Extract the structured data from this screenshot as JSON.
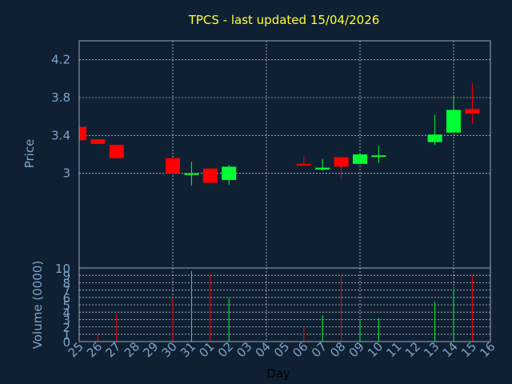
{
  "chart_data": {
    "type": "candlestick",
    "title": "TPCS - last updated 15/04/2026",
    "xlabel": "Day",
    "colors": {
      "background": "#0f2033",
      "plot_background": "#0f2033",
      "grid": "#ffffff",
      "axis_text": "#7fa3c8",
      "title": "#ffff33",
      "up": "#00ff33",
      "down": "#ff0000"
    },
    "x_ticks": [
      "25",
      "26",
      "27",
      "28",
      "29",
      "30",
      "31",
      "01",
      "02",
      "03",
      "04",
      "05",
      "06",
      "07",
      "08",
      "09",
      "10",
      "11",
      "12",
      "13",
      "14",
      "15",
      "16"
    ],
    "price_panel": {
      "ylabel": "Price",
      "ylim": [
        2.0,
        4.4
      ],
      "ticks": [
        3,
        3.4,
        3.8,
        4.2
      ],
      "tick_labels": [
        "3",
        "3.4",
        "3.8",
        "4.2"
      ]
    },
    "volume_panel": {
      "ylabel": "Volume (0000)",
      "ylim": [
        0,
        10
      ],
      "ticks": [
        0,
        1,
        2,
        3,
        4,
        5,
        6,
        7,
        8,
        9,
        10
      ],
      "tick_labels": [
        "0",
        "1",
        "2",
        "3",
        "4",
        "5",
        "6",
        "7",
        "8",
        "9",
        "10"
      ]
    },
    "candles": [
      {
        "day": "25",
        "open": 3.49,
        "high": 3.49,
        "low": 3.35,
        "close": 3.35
      },
      {
        "day": "26",
        "open": 3.36,
        "high": 3.36,
        "low": 3.31,
        "close": 3.31
      },
      {
        "day": "27",
        "open": 3.3,
        "high": 3.3,
        "low": 3.16,
        "close": 3.16
      },
      {
        "day": "30",
        "open": 3.16,
        "high": 3.16,
        "low": 3.0,
        "close": 3.0
      },
      {
        "day": "31",
        "open": 3.0,
        "high": 3.12,
        "low": 2.87,
        "close": 3.0
      },
      {
        "day": "01",
        "open": 3.05,
        "high": 3.05,
        "low": 2.9,
        "close": 2.9
      },
      {
        "day": "02",
        "open": 2.93,
        "high": 3.09,
        "low": 2.88,
        "close": 3.07
      },
      {
        "day": "06",
        "open": 3.1,
        "high": 3.18,
        "low": 3.08,
        "close": 3.09
      },
      {
        "day": "07",
        "open": 3.04,
        "high": 3.15,
        "low": 3.03,
        "close": 3.06
      },
      {
        "day": "08",
        "open": 3.17,
        "high": 3.17,
        "low": 2.94,
        "close": 3.07
      },
      {
        "day": "09",
        "open": 3.1,
        "high": 3.21,
        "low": 3.1,
        "close": 3.2
      },
      {
        "day": "10",
        "open": 3.18,
        "high": 3.29,
        "low": 3.11,
        "close": 3.19
      },
      {
        "day": "13",
        "open": 3.33,
        "high": 3.62,
        "low": 3.3,
        "close": 3.41
      },
      {
        "day": "14",
        "open": 3.43,
        "high": 3.81,
        "low": 3.43,
        "close": 3.67
      },
      {
        "day": "15",
        "open": 3.68,
        "high": 3.95,
        "low": 3.52,
        "close": 3.63
      }
    ],
    "volumes": [
      {
        "day": "25",
        "value": 0.3,
        "direction": "down"
      },
      {
        "day": "26",
        "value": 1.0,
        "direction": "down"
      },
      {
        "day": "27",
        "value": 3.8,
        "direction": "down"
      },
      {
        "day": "30",
        "value": 6.0,
        "direction": "down"
      },
      {
        "day": "31",
        "value": 9.6,
        "direction": "up"
      },
      {
        "day": "01",
        "value": 9.2,
        "direction": "down"
      },
      {
        "day": "02",
        "value": 5.9,
        "direction": "up"
      },
      {
        "day": "06",
        "value": 2.0,
        "direction": "down"
      },
      {
        "day": "07",
        "value": 3.6,
        "direction": "up"
      },
      {
        "day": "08",
        "value": 9.0,
        "direction": "down"
      },
      {
        "day": "09",
        "value": 2.8,
        "direction": "up"
      },
      {
        "day": "10",
        "value": 3.2,
        "direction": "up"
      },
      {
        "day": "13",
        "value": 5.4,
        "direction": "up"
      },
      {
        "day": "14",
        "value": 7.0,
        "direction": "up"
      },
      {
        "day": "15",
        "value": 9.0,
        "direction": "down"
      }
    ],
    "grid": true
  }
}
